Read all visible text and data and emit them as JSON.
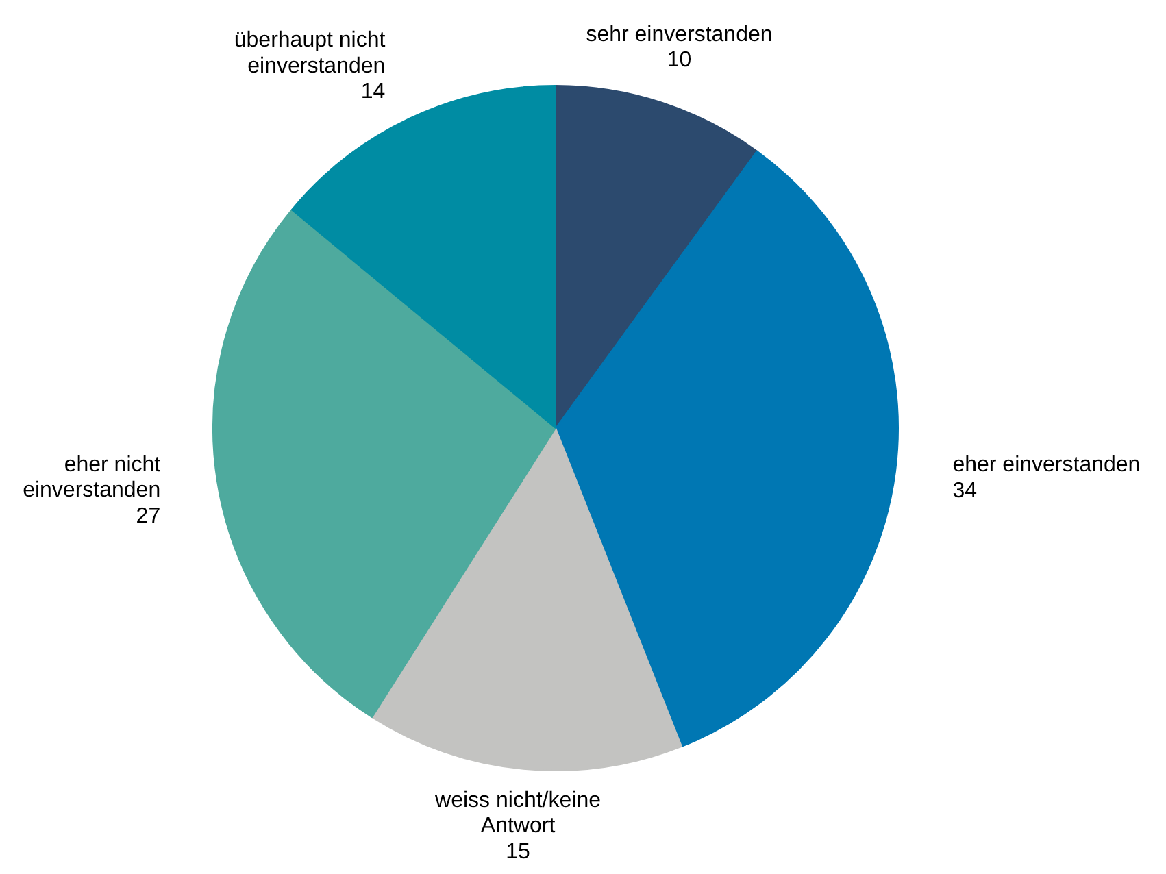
{
  "chart_data": {
    "type": "pie",
    "categories": [
      "sehr einverstanden",
      "eher einverstanden",
      "weiss nicht/keine Antwort",
      "eher nicht einverstanden",
      "überhaupt nicht einverstanden"
    ],
    "values": [
      10,
      34,
      15,
      27,
      14
    ],
    "colors": [
      "#2c4a6e",
      "#0077b3",
      "#c3c3c1",
      "#4eaa9e",
      "#008ca3"
    ],
    "data_labels": true
  }
}
